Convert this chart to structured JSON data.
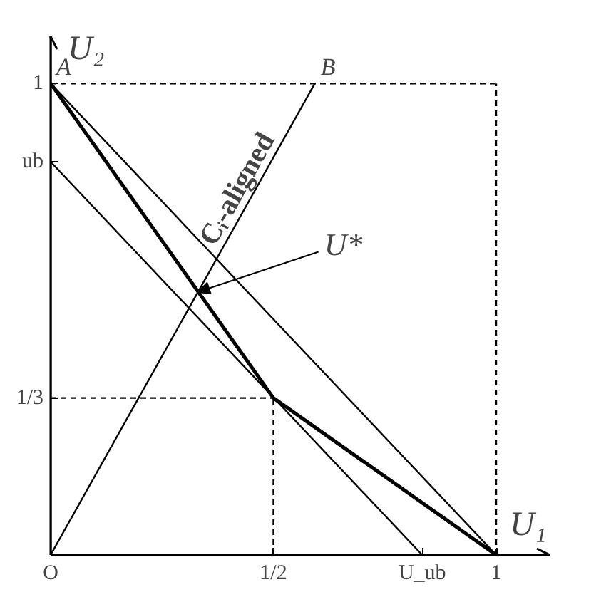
{
  "chart_data": {
    "type": "line",
    "xlabel": "U₁",
    "ylabel": "U₂",
    "xlim": [
      0,
      1.12
    ],
    "ylim": [
      0,
      1.1
    ],
    "xticks": [
      {
        "value": 0,
        "label": "O"
      },
      {
        "value": 0.5,
        "label": "1/2"
      },
      {
        "value": 0.834,
        "label": "U_ub"
      },
      {
        "value": 1,
        "label": "1"
      }
    ],
    "yticks": [
      {
        "value": 0.333,
        "label": "1/3"
      },
      {
        "value": 0.834,
        "label": "ub"
      },
      {
        "value": 1,
        "label": "1"
      }
    ],
    "grid": false,
    "marker": "none",
    "series": [
      {
        "color": "#000000",
        "x": [
          0,
          0.5,
          1
        ],
        "values": [
          1,
          0.333,
          0
        ]
      },
      {
        "color": "#000000",
        "x": [
          0,
          1
        ],
        "values": [
          1,
          0
        ]
      },
      {
        "color": "#000000",
        "x": [
          0,
          0.834
        ],
        "values": [
          0.834,
          0
        ]
      },
      {
        "color": "#000000",
        "x": [
          0,
          0.593
        ],
        "values": [
          0,
          1
        ]
      },
      {
        "color": "#000000",
        "line_style": "dashed",
        "x": [
          0,
          1
        ],
        "values": [
          1,
          1
        ]
      },
      {
        "color": "#000000",
        "line_style": "dashed",
        "x": [
          1,
          1
        ],
        "values": [
          0,
          1
        ]
      },
      {
        "color": "#000000",
        "line_style": "dashed",
        "x": [
          0,
          0.5
        ],
        "values": [
          0.333,
          0.333
        ]
      },
      {
        "color": "#000000",
        "line_style": "dashed",
        "x": [
          0.5,
          0.5
        ],
        "values": [
          0,
          0.333
        ]
      }
    ],
    "annotations": [
      {
        "text": "A",
        "x": 0,
        "y": 1
      },
      {
        "text": "B",
        "x": 0.593,
        "y": 1
      },
      {
        "text": "U*",
        "x": 0.331,
        "y": 0.558
      },
      {
        "text": "Cᵢ-aligned",
        "x": 0.45,
        "y": 0.76
      }
    ]
  }
}
